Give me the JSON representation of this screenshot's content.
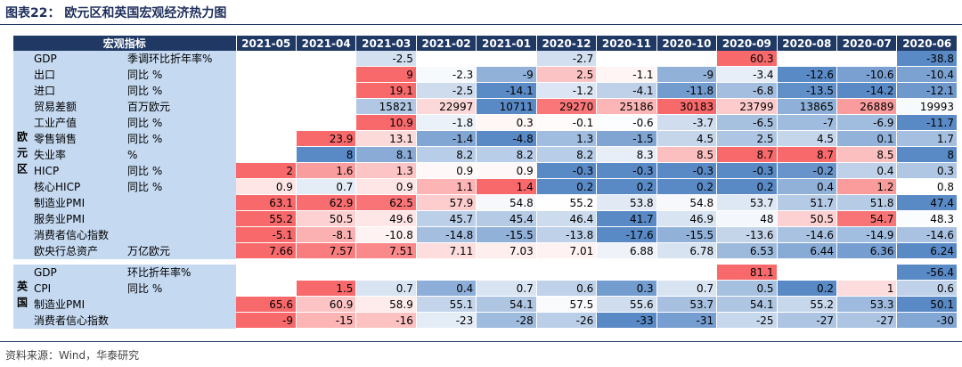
{
  "title": "图表22：  欧元区和英国宏观经济热力图",
  "table": {
    "label": "宏观指标",
    "columns": [
      "2021-05",
      "2021-04",
      "2021-03",
      "2021-02",
      "2021-01",
      "2020-12",
      "2020-11",
      "2020-10",
      "2020-09",
      "2020-08",
      "2020-07",
      "2020-06"
    ],
    "sections": [
      {
        "region": "欧元区",
        "rows": [
          {
            "name": "GDP",
            "unit": "季调环比折年率%",
            "values": [
              null,
              null,
              -2.5,
              null,
              null,
              -2.7,
              null,
              null,
              60.3,
              null,
              null,
              -38.8
            ]
          },
          {
            "name": "出口",
            "unit": "同比 %",
            "values": [
              null,
              null,
              9,
              -2.3,
              -9,
              2.5,
              -1.1,
              -9,
              -3.4,
              -12.6,
              -10.6,
              -10.4
            ]
          },
          {
            "name": "进口",
            "unit": "同比 %",
            "values": [
              null,
              null,
              19.1,
              -2.5,
              -14.1,
              -1.2,
              -4.1,
              -11.8,
              -6.8,
              -13.5,
              -14.2,
              -12.1
            ]
          },
          {
            "name": "贸易差额",
            "unit": "百万欧元",
            "values": [
              null,
              null,
              15821,
              22997,
              10711,
              29270,
              25186,
              30183,
              23799,
              13865,
              26889,
              19993
            ]
          },
          {
            "name": "工业产值",
            "unit": "同比 %",
            "values": [
              null,
              null,
              10.9,
              -1.8,
              0.3,
              -0.1,
              -0.6,
              -3.7,
              -6.5,
              -7,
              -6.9,
              -11.7
            ]
          },
          {
            "name": "零售销售",
            "unit": "同比 %",
            "values": [
              null,
              23.9,
              13.1,
              -1.4,
              -4.8,
              1.3,
              -1.5,
              4.5,
              2.5,
              4.5,
              0.1,
              1.7
            ]
          },
          {
            "name": "失业率",
            "unit": "%",
            "values": [
              null,
              8,
              8.1,
              8.2,
              8.2,
              8.2,
              8.3,
              8.5,
              8.7,
              8.7,
              8.5,
              8
            ]
          },
          {
            "name": "HICP",
            "unit": "同比 %",
            "values": [
              2,
              1.6,
              1.3,
              0.9,
              0.9,
              -0.3,
              -0.3,
              -0.3,
              -0.3,
              -0.2,
              0.4,
              0.3
            ]
          },
          {
            "name": "核心HICP",
            "unit": "同比 %",
            "values": [
              0.9,
              0.7,
              0.9,
              1.1,
              1.4,
              0.2,
              0.2,
              0.2,
              0.2,
              0.4,
              1.2,
              0.8
            ]
          },
          {
            "name": "制造业PMI",
            "values": [
              63.1,
              62.9,
              62.5,
              57.9,
              54.8,
              55.2,
              53.8,
              54.8,
              53.7,
              51.7,
              51.8,
              47.4
            ]
          },
          {
            "name": "服务业PMI",
            "values": [
              55.2,
              50.5,
              49.6,
              45.7,
              45.4,
              46.4,
              41.7,
              46.9,
              48,
              50.5,
              54.7,
              48.3
            ]
          },
          {
            "name": "消费者信心指数",
            "values": [
              -5.1,
              -8.1,
              -10.8,
              -14.8,
              -15.5,
              -13.8,
              -17.6,
              -15.5,
              -13.6,
              -14.6,
              -14.9,
              -14.6
            ]
          },
          {
            "name": "欧央行总资产",
            "unit": "万亿欧元",
            "values": [
              7.66,
              7.57,
              7.51,
              7.11,
              7.03,
              7.01,
              6.88,
              6.78,
              6.53,
              6.44,
              6.36,
              6.24
            ]
          }
        ]
      },
      {
        "region": "英国",
        "rows": [
          {
            "name": "GDP",
            "unit": "环比折年率%",
            "values": [
              null,
              null,
              null,
              null,
              null,
              null,
              null,
              null,
              81.1,
              null,
              null,
              -56.4
            ]
          },
          {
            "name": "CPI",
            "unit": "同比 %",
            "values": [
              null,
              1.5,
              0.7,
              0.4,
              0.7,
              0.6,
              0.3,
              0.7,
              0.5,
              0.2,
              1,
              0.6
            ]
          },
          {
            "name": "制造业PMI",
            "values": [
              65.6,
              60.9,
              58.9,
              55.1,
              54.1,
              57.5,
              55.6,
              53.7,
              54.1,
              55.2,
              53.3,
              50.1
            ]
          },
          {
            "name": "消费者信心指数",
            "values": [
              -9,
              -15,
              -16,
              -23,
              -28,
              -26,
              -33,
              -31,
              -25,
              -27,
              -27,
              -30
            ]
          }
        ]
      }
    ]
  },
  "source": "资料来源：Wind，华泰研究"
}
